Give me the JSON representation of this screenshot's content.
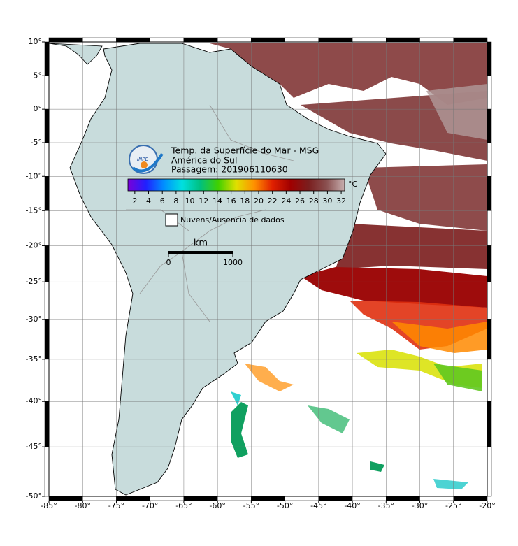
{
  "chart_data": {
    "type": "map",
    "projection": "mercator",
    "title_lines": [
      "Temp. da Superfície do Mar - MSG",
      "América do Sul",
      "Passagem: 201906110630"
    ],
    "logo_text": "INPE",
    "xlim": [
      -85,
      -20
    ],
    "ylim": [
      -50,
      10
    ],
    "xticks": [
      {
        "value": -85,
        "label": "-85°"
      },
      {
        "value": -80,
        "label": "-80°"
      },
      {
        "value": -75,
        "label": "-75°"
      },
      {
        "value": -70,
        "label": "-70°"
      },
      {
        "value": -65,
        "label": "-65°"
      },
      {
        "value": -60,
        "label": "-60°"
      },
      {
        "value": -55,
        "label": "-55°"
      },
      {
        "value": -50,
        "label": "-50°"
      },
      {
        "value": -45,
        "label": "-45°"
      },
      {
        "value": -40,
        "label": "-40°"
      },
      {
        "value": -35,
        "label": "-35°"
      },
      {
        "value": -30,
        "label": "-30°"
      },
      {
        "value": -25,
        "label": "-25°"
      },
      {
        "value": -20,
        "label": "-20°"
      }
    ],
    "yticks": [
      {
        "value": 10,
        "label": "10°"
      },
      {
        "value": 5,
        "label": "5°"
      },
      {
        "value": 0,
        "label": "0°"
      },
      {
        "value": -5,
        "label": "-5°"
      },
      {
        "value": -10,
        "label": "-10°"
      },
      {
        "value": -15,
        "label": "-15°"
      },
      {
        "value": -20,
        "label": "-20°"
      },
      {
        "value": -25,
        "label": "-25°"
      },
      {
        "value": -30,
        "label": "-30°"
      },
      {
        "value": -35,
        "label": "-35°"
      },
      {
        "value": -40,
        "label": "-40°"
      },
      {
        "value": -45,
        "label": "-45°"
      },
      {
        "value": -50,
        "label": "-50°"
      }
    ],
    "grid": true,
    "colorbar": {
      "unit": "°C",
      "lim": [
        1,
        32.5
      ],
      "ticks": [
        2,
        4,
        6,
        8,
        10,
        12,
        14,
        16,
        18,
        20,
        22,
        24,
        26,
        28,
        30,
        32
      ],
      "colors": [
        "#7a00d8",
        "#2020ff",
        "#0090ff",
        "#00e0e0",
        "#00c080",
        "#40d000",
        "#e0e000",
        "#ff9000",
        "#e02000",
        "#a00000",
        "#7a1e1e",
        "#8a5050",
        "#c8b0b0"
      ]
    },
    "legend": "Nuvens/Ausencia de dados",
    "scale_bar": {
      "unit": "km",
      "ticks": [
        0,
        1000
      ]
    }
  }
}
